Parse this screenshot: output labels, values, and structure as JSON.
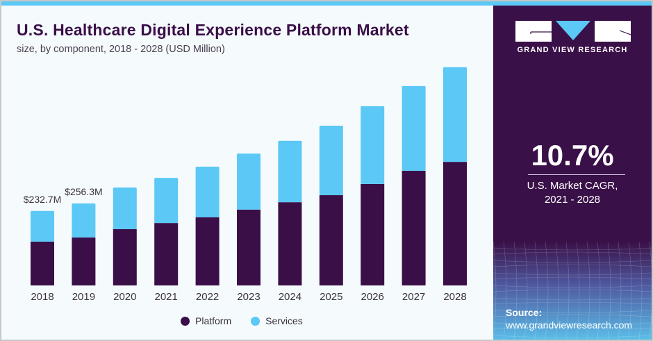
{
  "header": {
    "title": "U.S. Healthcare Digital Experience Platform Market",
    "subtitle": "size, by component, 2018 - 2028 (USD Million)"
  },
  "brand": {
    "name": "GRAND VIEW RESEARCH",
    "logo_icon": "gvr-logo-icon"
  },
  "highlight": {
    "cagr_value": "10.7%",
    "cagr_label_line1": "U.S. Market CAGR,",
    "cagr_label_line2": "2021 - 2028"
  },
  "source": {
    "label": "Source:",
    "url": "www.grandviewresearch.com"
  },
  "colors": {
    "platform": "#3a0f48",
    "services": "#5bc8f5",
    "panel": "#3a1048",
    "accent": "#5bc8f5"
  },
  "chart_data": {
    "type": "bar",
    "stacked": true,
    "title": "U.S. Healthcare Digital Experience Platform Market",
    "subtitle": "size, by component, 2018 - 2028 (USD Million)",
    "xlabel": "",
    "ylabel": "",
    "categories": [
      "2018",
      "2019",
      "2020",
      "2021",
      "2022",
      "2023",
      "2024",
      "2025",
      "2026",
      "2027",
      "2028"
    ],
    "series": [
      {
        "name": "Platform",
        "values": [
          137,
          150,
          176,
          195,
          213,
          237,
          260,
          282,
          317,
          358,
          386
        ]
      },
      {
        "name": "Services",
        "values": [
          95.7,
          106.3,
          130,
          141,
          158,
          175,
          192,
          217,
          243,
          265,
          296
        ]
      }
    ],
    "totals": [
      232.7,
      256.3,
      306,
      336,
      371,
      412,
      452,
      499,
      560,
      623,
      682
    ],
    "annotations": [
      {
        "category": "2018",
        "text": "$232.7M"
      },
      {
        "category": "2019",
        "text": "$256.3M"
      }
    ],
    "ylim": [
      0,
      700
    ],
    "grid": false,
    "legend": {
      "position": "bottom",
      "entries": [
        "Platform",
        "Services"
      ]
    }
  }
}
